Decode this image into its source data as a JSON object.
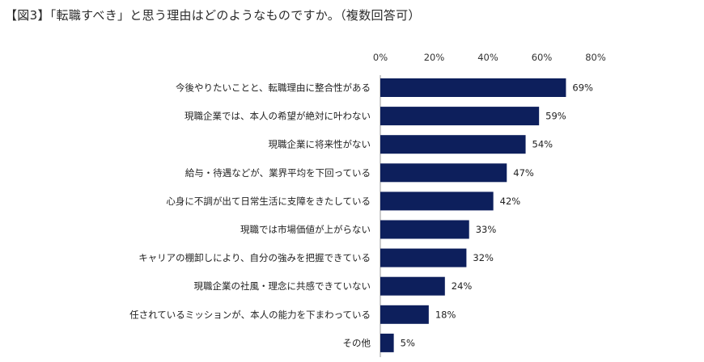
{
  "title": "【図3】「転職すべき」と思う理由はどのようなものですか。（複数回答可）",
  "chart_data": {
    "type": "bar",
    "orientation": "horizontal",
    "categories": [
      "今後やりたいことと、転職理由に整合性がある",
      "現職企業では、本人の希望が絶対に叶わない",
      "現職企業に将来性がない",
      "給与・待遇などが、業界平均を下回っている",
      "心身に不調が出て日常生活に支障をきたしている",
      "現職では市場価値が上がらない",
      "キャリアの棚卸しにより、自分の強みを把握できている",
      "現職企業の社風・理念に共感できていない",
      "任されているミッションが、本人の能力を下まわっている",
      "その他"
    ],
    "values": [
      69,
      59,
      54,
      47,
      42,
      33,
      32,
      24,
      18,
      5
    ],
    "value_labels": [
      "69%",
      "59%",
      "54%",
      "47%",
      "42%",
      "33%",
      "32%",
      "24%",
      "18%",
      "5%"
    ],
    "xlim": [
      0,
      80
    ],
    "x_ticks": [
      "0%",
      "20%",
      "40%",
      "60%",
      "80%"
    ],
    "x_tick_values": [
      0,
      20,
      40,
      60,
      80
    ],
    "x_axis_position": "top",
    "grid": false,
    "bar_color": "#0d1f5c"
  }
}
